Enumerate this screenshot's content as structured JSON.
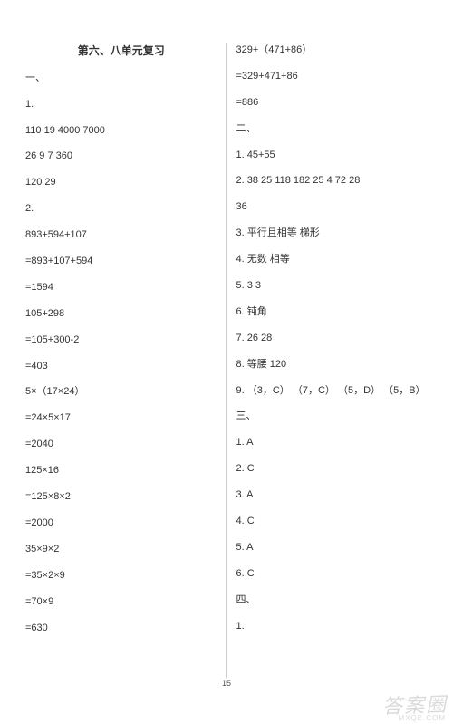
{
  "title": "第六、八单元复习",
  "left_lines": [
    "一、",
    "1.",
    "110  19  4000  7000",
    "26  9  7  360",
    "120  29",
    "2.",
    "893+594+107",
    "=893+107+594",
    "=1594",
    "105+298",
    "=105+300-2",
    "=403",
    "5×（17×24）",
    "=24×5×17",
    "=2040",
    "125×16",
    "=125×8×2",
    "=2000",
    "35×9×2",
    "=35×2×9",
    "=70×9",
    "=630"
  ],
  "right_lines": [
    "329+（471+86）",
    "=329+471+86",
    "=886",
    "二、",
    "1. 45+55",
    "2. 38  25  118  182  25  4  72  28",
    "36",
    "3. 平行且相等  梯形",
    "4. 无数  相等",
    "5. 3  3",
    "6. 钝角",
    "7. 26  28",
    "8. 等腰  120",
    "9. （3，C） （7，C） （5，D） （5，B）",
    "三、",
    "1. A",
    "2. C",
    "3. A",
    "4. C",
    "5. A",
    "6. C",
    "四、",
    "1."
  ],
  "page_number": "15",
  "watermark_main": "答案圈",
  "watermark_sub": "MXQE.COM"
}
